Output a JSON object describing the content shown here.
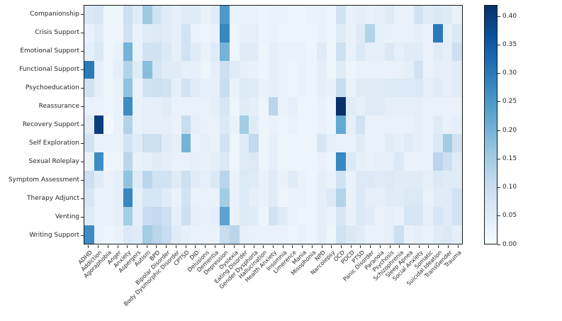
{
  "chart_data": {
    "type": "heatmap",
    "title": "",
    "xlabel": "",
    "ylabel": "",
    "colormap": "Blues",
    "vmin": 0.0,
    "vmax": 0.42,
    "grid": false,
    "legend_position": "right-colorbar",
    "colorbar_ticks": [
      "0.00",
      "0.05",
      "0.10",
      "0.15",
      "0.20",
      "0.25",
      "0.30",
      "0.35",
      "0.40"
    ],
    "rows": [
      "Companionship",
      "Crisis Support",
      "Emotional Support",
      "Functional Support",
      "Psychoeducation",
      "Reassurance",
      "Recovery Support",
      "Self Exploration",
      "Sexual Roleplay",
      "Symptom Assessment",
      "Therapy Adjunct",
      "Venting",
      "Writing Support"
    ],
    "columns": [
      "ADHD",
      "Addiction",
      "Agoraphobia",
      "Anger",
      "Anxiety",
      "Aspergers",
      "Autism",
      "BPD",
      "Bipolar Disorder",
      "Body Dysmorphic Disorder",
      "CPTSD",
      "DID",
      "Delusions",
      "Dementia",
      "Depression",
      "Dyslexia",
      "Eating Disorder",
      "Gender Dysphoria",
      "Hallucination",
      "Health Anxiety",
      "Insomnia",
      "Limerence",
      "Mania",
      "Misophonia",
      "NPD",
      "Narcolepsy",
      "OCD",
      "POCD",
      "PTSD",
      "Panic Disorder",
      "Paranoia",
      "Psychosis",
      "Schizophrenia",
      "Sleep Apnea",
      "Social Anxiety",
      "Somatic",
      "Suicidal Ideation",
      "TransGender",
      "Trauma"
    ],
    "values": [
      [
        0.06,
        0.07,
        0.02,
        0.02,
        0.09,
        0.05,
        0.16,
        0.08,
        0.05,
        0.04,
        0.05,
        0.05,
        0.03,
        0.05,
        0.25,
        0.03,
        0.03,
        0.03,
        0.02,
        0.03,
        0.03,
        0.02,
        0.02,
        0.03,
        0.03,
        0.02,
        0.08,
        0.03,
        0.04,
        0.03,
        0.04,
        0.05,
        0.03,
        0.03,
        0.08,
        0.05,
        0.06,
        0.05,
        0.03
      ],
      [
        0.03,
        0.05,
        0.02,
        0.02,
        0.08,
        0.03,
        0.05,
        0.06,
        0.05,
        0.04,
        0.08,
        0.03,
        0.02,
        0.03,
        0.28,
        0.02,
        0.04,
        0.04,
        0.02,
        0.03,
        0.02,
        0.02,
        0.02,
        0.02,
        0.03,
        0.02,
        0.05,
        0.03,
        0.05,
        0.13,
        0.04,
        0.03,
        0.03,
        0.03,
        0.04,
        0.03,
        0.3,
        0.04,
        0.06
      ],
      [
        0.04,
        0.06,
        0.02,
        0.03,
        0.2,
        0.03,
        0.08,
        0.08,
        0.06,
        0.04,
        0.08,
        0.05,
        0.03,
        0.05,
        0.2,
        0.02,
        0.05,
        0.05,
        0.02,
        0.04,
        0.03,
        0.03,
        0.03,
        0.02,
        0.05,
        0.02,
        0.09,
        0.03,
        0.06,
        0.04,
        0.04,
        0.06,
        0.04,
        0.05,
        0.05,
        0.03,
        0.05,
        0.04,
        0.09
      ],
      [
        0.3,
        0.04,
        0.02,
        0.04,
        0.13,
        0.05,
        0.18,
        0.07,
        0.05,
        0.05,
        0.04,
        0.04,
        0.02,
        0.04,
        0.09,
        0.05,
        0.04,
        0.03,
        0.02,
        0.04,
        0.03,
        0.02,
        0.03,
        0.02,
        0.04,
        0.02,
        0.05,
        0.02,
        0.03,
        0.03,
        0.03,
        0.03,
        0.03,
        0.04,
        0.08,
        0.03,
        0.04,
        0.04,
        0.05
      ],
      [
        0.08,
        0.04,
        0.02,
        0.03,
        0.17,
        0.03,
        0.08,
        0.09,
        0.08,
        0.04,
        0.08,
        0.05,
        0.04,
        0.04,
        0.1,
        0.03,
        0.06,
        0.05,
        0.03,
        0.04,
        0.03,
        0.02,
        0.03,
        0.02,
        0.04,
        0.03,
        0.1,
        0.03,
        0.05,
        0.05,
        0.05,
        0.06,
        0.06,
        0.06,
        0.06,
        0.04,
        0.05,
        0.04,
        0.05
      ],
      [
        0.03,
        0.03,
        0.02,
        0.03,
        0.27,
        0.03,
        0.04,
        0.04,
        0.05,
        0.03,
        0.03,
        0.03,
        0.03,
        0.04,
        0.07,
        0.02,
        0.05,
        0.04,
        0.02,
        0.12,
        0.03,
        0.04,
        0.02,
        0.02,
        0.03,
        0.02,
        0.42,
        0.05,
        0.04,
        0.05,
        0.05,
        0.04,
        0.04,
        0.04,
        0.04,
        0.03,
        0.03,
        0.03,
        0.03
      ],
      [
        0.05,
        0.4,
        0.01,
        0.03,
        0.13,
        0.03,
        0.04,
        0.04,
        0.04,
        0.03,
        0.1,
        0.04,
        0.03,
        0.03,
        0.06,
        0.03,
        0.15,
        0.05,
        0.02,
        0.03,
        0.02,
        0.03,
        0.02,
        0.02,
        0.03,
        0.02,
        0.22,
        0.04,
        0.08,
        0.03,
        0.03,
        0.03,
        0.03,
        0.03,
        0.04,
        0.03,
        0.05,
        0.03,
        0.04
      ],
      [
        0.08,
        0.03,
        0.03,
        0.03,
        0.08,
        0.05,
        0.09,
        0.09,
        0.05,
        0.04,
        0.2,
        0.03,
        0.04,
        0.03,
        0.08,
        0.02,
        0.05,
        0.11,
        0.02,
        0.04,
        0.02,
        0.02,
        0.02,
        0.02,
        0.07,
        0.04,
        0.03,
        0.03,
        0.05,
        0.03,
        0.03,
        0.05,
        0.04,
        0.05,
        0.04,
        0.03,
        0.06,
        0.15,
        0.08
      ],
      [
        0.03,
        0.27,
        0.02,
        0.02,
        0.12,
        0.03,
        0.04,
        0.05,
        0.04,
        0.03,
        0.03,
        0.04,
        0.03,
        0.04,
        0.06,
        0.02,
        0.05,
        0.06,
        0.02,
        0.04,
        0.02,
        0.02,
        0.02,
        0.02,
        0.03,
        0.02,
        0.28,
        0.06,
        0.04,
        0.03,
        0.04,
        0.04,
        0.06,
        0.03,
        0.03,
        0.03,
        0.12,
        0.09,
        0.05
      ],
      [
        0.09,
        0.05,
        0.03,
        0.04,
        0.17,
        0.05,
        0.12,
        0.08,
        0.08,
        0.05,
        0.09,
        0.05,
        0.04,
        0.06,
        0.12,
        0.03,
        0.06,
        0.05,
        0.03,
        0.05,
        0.03,
        0.05,
        0.03,
        0.02,
        0.04,
        0.03,
        0.08,
        0.03,
        0.06,
        0.06,
        0.05,
        0.06,
        0.05,
        0.05,
        0.05,
        0.04,
        0.06,
        0.05,
        0.05
      ],
      [
        0.07,
        0.03,
        0.03,
        0.04,
        0.28,
        0.04,
        0.07,
        0.07,
        0.05,
        0.03,
        0.08,
        0.03,
        0.03,
        0.03,
        0.15,
        0.03,
        0.06,
        0.04,
        0.03,
        0.05,
        0.02,
        0.03,
        0.03,
        0.02,
        0.04,
        0.06,
        0.13,
        0.03,
        0.06,
        0.04,
        0.04,
        0.05,
        0.05,
        0.06,
        0.06,
        0.03,
        0.05,
        0.05,
        0.08
      ],
      [
        0.05,
        0.03,
        0.03,
        0.04,
        0.15,
        0.04,
        0.1,
        0.11,
        0.09,
        0.04,
        0.09,
        0.04,
        0.03,
        0.04,
        0.23,
        0.03,
        0.06,
        0.05,
        0.02,
        0.08,
        0.05,
        0.03,
        0.02,
        0.02,
        0.04,
        0.03,
        0.07,
        0.03,
        0.06,
        0.05,
        0.03,
        0.04,
        0.03,
        0.07,
        0.07,
        0.04,
        0.07,
        0.05,
        0.08
      ],
      [
        0.27,
        0.03,
        0.02,
        0.03,
        0.06,
        0.05,
        0.15,
        0.12,
        0.1,
        0.05,
        0.04,
        0.03,
        0.03,
        0.03,
        0.1,
        0.12,
        0.04,
        0.03,
        0.03,
        0.03,
        0.03,
        0.02,
        0.03,
        0.02,
        0.04,
        0.02,
        0.08,
        0.06,
        0.05,
        0.03,
        0.03,
        0.04,
        0.09,
        0.03,
        0.04,
        0.03,
        0.05,
        0.06,
        0.04
      ]
    ],
    "colors": {
      "colormap_low": "#f7fbff",
      "colormap_high": "#08306b",
      "axis_text": "#262626",
      "spine": "#1a1a1a",
      "background": "#ffffff"
    }
  }
}
